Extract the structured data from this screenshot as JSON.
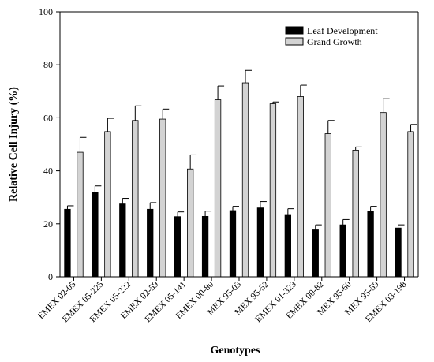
{
  "chart_data": {
    "type": "bar",
    "title": "",
    "xlabel": "Genotypes",
    "ylabel": "Relative Cell Injury (%)",
    "ylim": [
      0,
      100
    ],
    "yticks": [
      0,
      20,
      40,
      60,
      80,
      100
    ],
    "grid": false,
    "legend_position": "top-right",
    "categories": [
      "EMEX 02-05",
      "EMEX 05-225",
      "EMEX 05-222",
      "EMEX 02-59",
      "EMEX 05-141",
      "EMEX 00-80",
      "MEX 95-03",
      "MEX 95-52",
      "EMEX 01-323",
      "EMEX 00-82",
      "MEX 95-60",
      "MEX 95-59",
      "EMEX 03-198"
    ],
    "series": [
      {
        "name": "Leaf Development",
        "color": "#000000",
        "values": [
          25.5,
          31.8,
          27.5,
          25.5,
          22.7,
          22.8,
          25.0,
          26.0,
          23.5,
          18.0,
          19.6,
          24.8,
          18.4
        ],
        "errors": [
          1.3,
          2.5,
          2.1,
          2.5,
          1.8,
          2.0,
          1.6,
          2.4,
          2.2,
          1.6,
          2.0,
          1.8,
          1.2
        ]
      },
      {
        "name": "Grand Growth",
        "color": "#d3d3d3",
        "values": [
          47.0,
          54.8,
          59.0,
          59.5,
          40.7,
          66.8,
          73.2,
          65.3,
          68.0,
          54.0,
          47.8,
          62.0,
          54.8
        ],
        "errors": [
          5.6,
          5.0,
          5.5,
          3.8,
          5.3,
          5.2,
          4.7,
          0.7,
          4.3,
          5.0,
          1.2,
          5.2,
          2.7
        ]
      }
    ]
  }
}
